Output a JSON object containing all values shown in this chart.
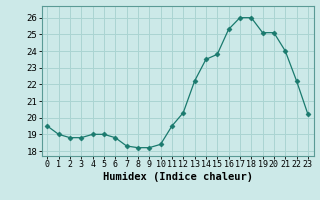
{
  "x": [
    0,
    1,
    2,
    3,
    4,
    5,
    6,
    7,
    8,
    9,
    10,
    11,
    12,
    13,
    14,
    15,
    16,
    17,
    18,
    19,
    20,
    21,
    22,
    23
  ],
  "y": [
    19.5,
    19.0,
    18.8,
    18.8,
    19.0,
    19.0,
    18.8,
    18.3,
    18.2,
    18.2,
    18.4,
    19.5,
    20.3,
    22.2,
    23.5,
    23.8,
    25.3,
    26.0,
    26.0,
    25.1,
    25.1,
    24.0,
    22.2,
    20.2
  ],
  "line_color": "#1a7a6e",
  "marker": "D",
  "marker_size": 2.5,
  "bg_color": "#cce9e8",
  "grid_color": "#aad4d2",
  "xlabel": "Humidex (Indice chaleur)",
  "ylabel_ticks": [
    18,
    19,
    20,
    21,
    22,
    23,
    24,
    25,
    26
  ],
  "xlim": [
    -0.5,
    23.5
  ],
  "ylim": [
    17.7,
    26.7
  ],
  "xtick_labels": [
    "0",
    "1",
    "2",
    "3",
    "4",
    "5",
    "6",
    "7",
    "8",
    "9",
    "10",
    "11",
    "12",
    "13",
    "14",
    "15",
    "16",
    "17",
    "18",
    "19",
    "20",
    "21",
    "22",
    "23"
  ],
  "label_fontsize": 7.5,
  "tick_fontsize": 6.5
}
